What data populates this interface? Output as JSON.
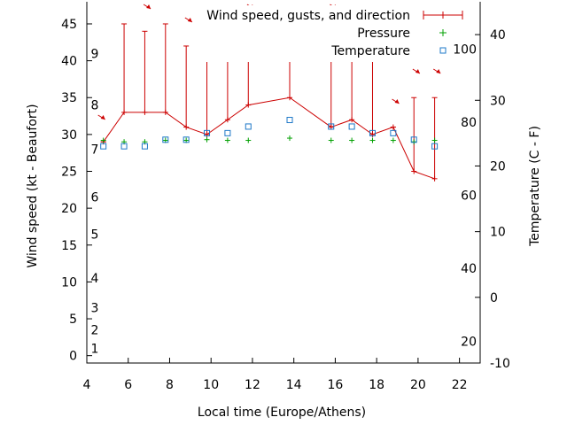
{
  "chart_data": {
    "type": "line",
    "xlabel": "Local time (Europe/Athens)",
    "ylabel_left": "Wind speed (kt - Beaufort)",
    "ylabel_right": "Temperature (C - F)",
    "xlim": [
      4,
      23
    ],
    "ylim_left": [
      -1,
      48
    ],
    "ylim_right": [
      -10,
      45
    ],
    "x_ticks": [
      "4",
      "6",
      "8",
      "10",
      "12",
      "14",
      "16",
      "18",
      "20",
      "22"
    ],
    "y_left_ticks": [
      "0",
      "5",
      "10",
      "15",
      "20",
      "25",
      "30",
      "35",
      "40",
      "45"
    ],
    "y_right_ticks": [
      "-10",
      "0",
      "10",
      "20",
      "30",
      "40"
    ],
    "fahrenheit_labels": [
      "20",
      "40",
      "60",
      "80",
      "100"
    ],
    "beaufort_labels": [
      "1",
      "2",
      "3",
      "4",
      "5",
      "6",
      "7",
      "8",
      "9"
    ],
    "legend_position": "top-right",
    "series": [
      {
        "name": "Wind speed, gusts, and direction",
        "color": "#cc0000",
        "x": [
          4.8,
          5.8,
          6.8,
          7.8,
          8.8,
          9.8,
          10.8,
          11.8,
          13.8,
          15.8,
          16.8,
          17.8,
          18.8,
          19.8,
          20.8
        ],
        "values": [
          29,
          33,
          33,
          33,
          31,
          30,
          32,
          34,
          35,
          31,
          32,
          30,
          31,
          25,
          24
        ],
        "gusts": [
          29,
          45,
          44,
          45,
          42,
          40,
          42,
          44,
          45,
          44,
          43,
          41,
          31,
          35,
          35
        ],
        "direction_arrows_x": [
          4.8,
          7,
          9,
          10,
          11,
          12,
          16,
          17,
          18,
          19,
          20,
          21
        ]
      },
      {
        "name": "Pressure",
        "color": "#00a000",
        "x": [
          4.8,
          5.8,
          6.8,
          7.8,
          8.8,
          9.8,
          10.8,
          11.8,
          13.8,
          15.8,
          16.8,
          17.8,
          18.8,
          19.8,
          20.8
        ],
        "values": [
          29.2,
          29.0,
          29.0,
          29.2,
          29.2,
          29.3,
          29.2,
          29.2,
          29.5,
          29.2,
          29.2,
          29.2,
          29.2,
          29.0,
          29.2
        ]
      },
      {
        "name": "Temperature",
        "color": "#1e78c8",
        "x": [
          4.8,
          5.8,
          6.8,
          7.8,
          8.8,
          9.8,
          10.8,
          11.8,
          13.8,
          15.8,
          16.8,
          17.8,
          18.8,
          19.8,
          20.8
        ],
        "values": [
          23,
          23,
          23,
          24,
          24,
          25,
          25,
          26,
          27,
          26,
          26,
          25,
          25,
          24,
          23
        ]
      }
    ]
  }
}
